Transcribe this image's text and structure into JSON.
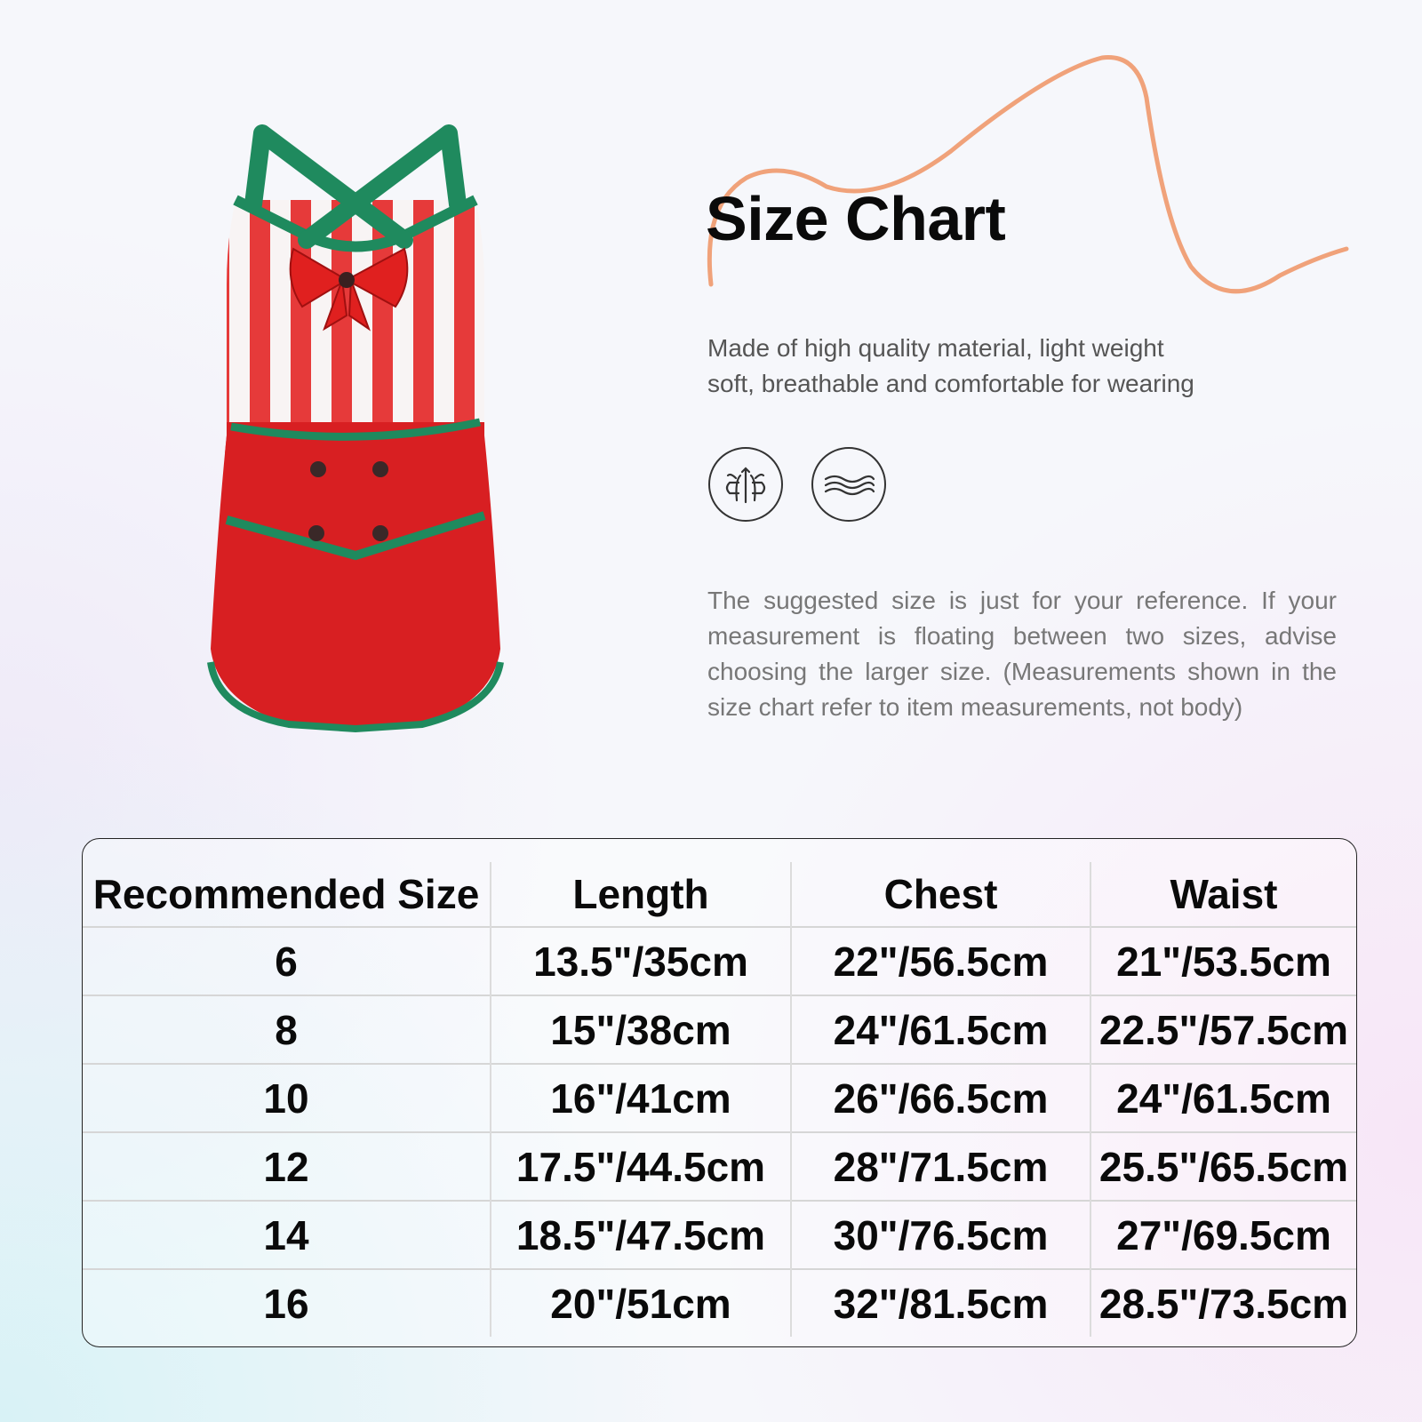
{
  "title": "Size Chart",
  "description": [
    "Made of high quality material, light weight",
    "soft, breathable and comfortable for wearing"
  ],
  "feature_icons": [
    "breathable-fabric-icon",
    "soft-wave-icon"
  ],
  "note": "The suggested size is just for your reference. If your measurement is floating between two sizes, advise choosing the larger size. (Measurements shown in the size chart refer to item measurements, not body)",
  "colors": {
    "accent_curve": "#f0a27a",
    "garment_red": "#e02a2a",
    "garment_green": "#1f8a5e"
  },
  "table": {
    "headers": [
      "Recommended Size",
      "Length",
      "Chest",
      "Waist"
    ],
    "rows": [
      [
        "6",
        "13.5\"/35cm",
        "22\"/56.5cm",
        "21\"/53.5cm"
      ],
      [
        "8",
        "15\"/38cm",
        "24\"/61.5cm",
        "22.5\"/57.5cm"
      ],
      [
        "10",
        "16\"/41cm",
        "26\"/66.5cm",
        "24\"/61.5cm"
      ],
      [
        "12",
        "17.5\"/44.5cm",
        "28\"/71.5cm",
        "25.5\"/65.5cm"
      ],
      [
        "14",
        "18.5\"/47.5cm",
        "30\"/76.5cm",
        "27\"/69.5cm"
      ],
      [
        "16",
        "20\"/51cm",
        "32\"/81.5cm",
        "28.5\"/73.5cm"
      ]
    ]
  }
}
